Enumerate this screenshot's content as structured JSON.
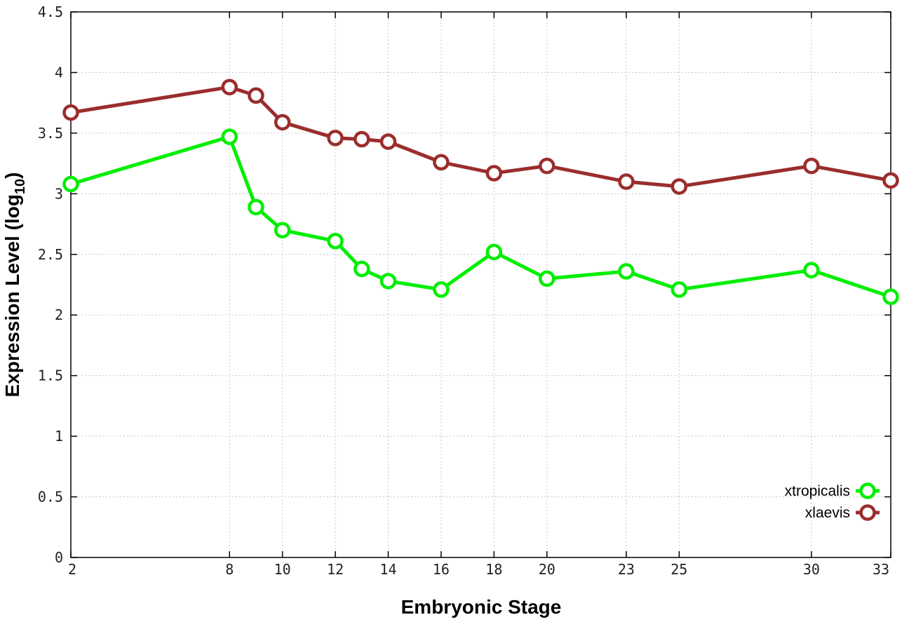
{
  "chart_data": {
    "type": "line",
    "title": "",
    "xlabel": "Embryonic Stage",
    "ylabel_main": "Expression Level (log",
    "ylabel_sub": "10",
    "ylabel_close": ")",
    "x": [
      2,
      8,
      9,
      10,
      12,
      13,
      14,
      16,
      18,
      20,
      23,
      25,
      30,
      33
    ],
    "xticks": [
      "2",
      "8",
      "10",
      "12",
      "14",
      "16",
      "18",
      "20",
      "23",
      "25",
      "30",
      "33"
    ],
    "xtick_values": [
      2,
      8,
      10,
      12,
      14,
      16,
      18,
      20,
      23,
      25,
      30,
      33
    ],
    "xlim": [
      2,
      33
    ],
    "ylim": [
      0,
      4.5
    ],
    "yticks": [
      "0",
      "0.5",
      "1",
      "1.5",
      "2",
      "2.5",
      "3",
      "3.5",
      "4",
      "4.5"
    ],
    "ytick_values": [
      0,
      0.5,
      1,
      1.5,
      2,
      2.5,
      3,
      3.5,
      4,
      4.5
    ],
    "grid": true,
    "legend_position": "bottom-right",
    "series": [
      {
        "name": "xtropicalis",
        "color": "#00ee00",
        "values": [
          3.08,
          3.47,
          2.89,
          2.7,
          2.61,
          2.38,
          2.28,
          2.21,
          2.52,
          2.3,
          2.36,
          2.21,
          2.37,
          2.15
        ]
      },
      {
        "name": "xlaevis",
        "color": "#9b2d2d",
        "values": [
          3.67,
          3.88,
          3.81,
          3.59,
          3.46,
          3.45,
          3.43,
          3.26,
          3.17,
          3.23,
          3.1,
          3.06,
          3.23,
          3.11
        ]
      }
    ]
  }
}
